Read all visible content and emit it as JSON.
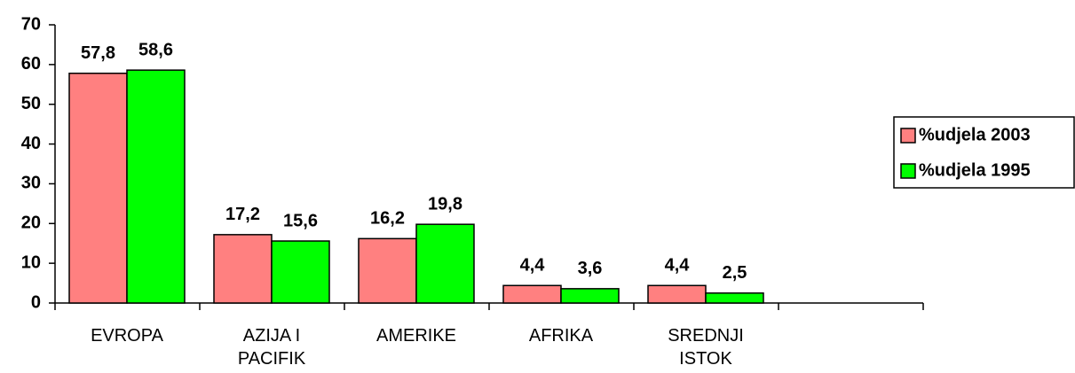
{
  "chart_data": {
    "type": "bar",
    "categories": [
      "EVROPA",
      "AZIJA I PACIFIK",
      "AMERIKE",
      "AFRIKA",
      "SREDNJI ISTOK",
      null
    ],
    "series": [
      {
        "name": "%udjela 2003",
        "color": "#ff8080",
        "values": [
          57.8,
          17.2,
          16.2,
          4.4,
          4.4,
          null
        ],
        "value_labels": [
          "57,8",
          "17,2",
          "16,2",
          "4,4",
          "4,4",
          null
        ]
      },
      {
        "name": "%udjela 1995",
        "color": "#00ff00",
        "values": [
          58.6,
          15.6,
          19.8,
          3.6,
          2.5,
          null
        ],
        "value_labels": [
          "58,6",
          "15,6",
          "19,8",
          "3,6",
          "2,5",
          null
        ]
      }
    ],
    "ylim": [
      0,
      70
    ],
    "yticks": [
      0,
      10,
      20,
      30,
      40,
      50,
      60,
      70
    ],
    "legend": "right"
  }
}
